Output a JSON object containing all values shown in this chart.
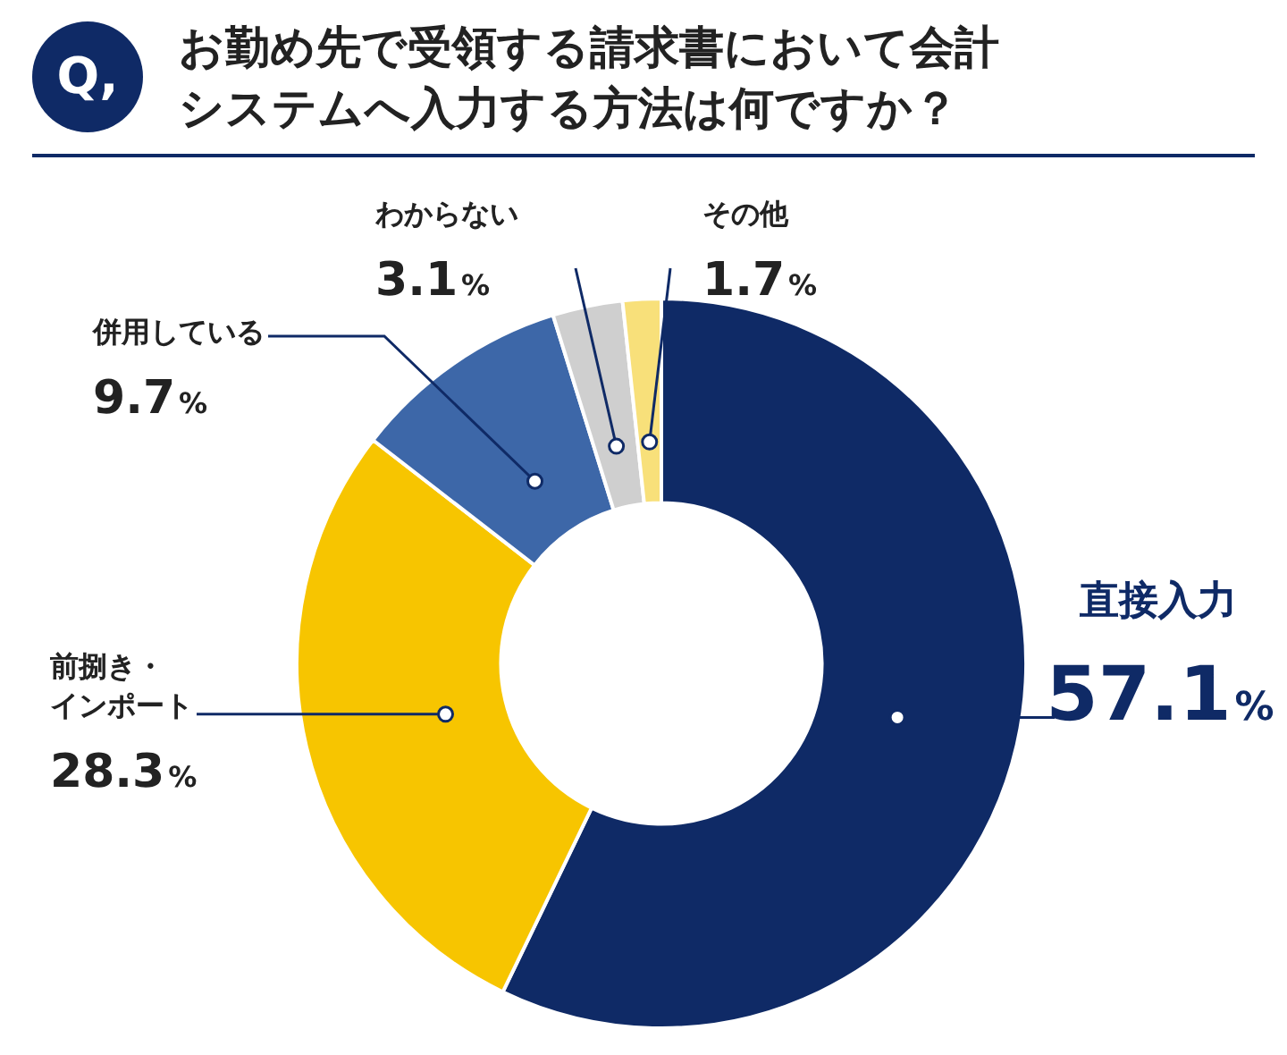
{
  "chart_data": {
    "type": "donut",
    "title": "お勤め先で受領する請求書において会計システムへ入力する方法は何ですか？",
    "annotations": [
      "Q,"
    ],
    "categories": [
      "直接入力",
      "前捌き・インポート",
      "併用している",
      "わからない",
      "その他"
    ],
    "values": [
      57.1,
      28.3,
      9.7,
      3.1,
      1.7
    ],
    "value_labels": [
      "57.1%",
      "28.3%",
      "9.7%",
      "3.1%",
      "1.7%"
    ],
    "colors": [
      "#0f2a66",
      "#f7c500",
      "#3d67a8",
      "#cfcfcf",
      "#f8e07a"
    ],
    "legend": false
  }
}
